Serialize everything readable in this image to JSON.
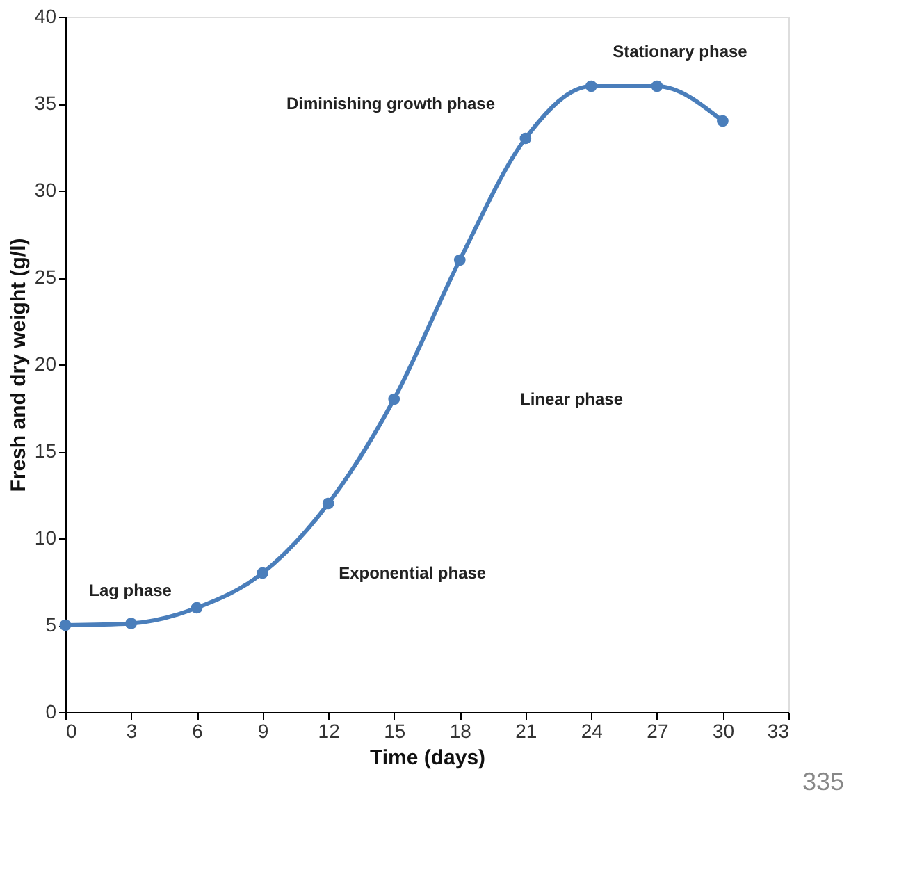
{
  "chart_data": {
    "type": "line",
    "xlabel": "Time (days)",
    "ylabel": "Fresh and dry weight (g/l)",
    "x": [
      0,
      3,
      6,
      9,
      12,
      15,
      18,
      21,
      24,
      27,
      30
    ],
    "series": [
      {
        "color": "#4a7ebb",
        "values": [
          5,
          5.1,
          6,
          8,
          12,
          18,
          26,
          33,
          36,
          36,
          34
        ]
      }
    ],
    "xlim": [
      0,
      33
    ],
    "xticks": [
      0,
      3,
      6,
      9,
      12,
      15,
      18,
      21,
      24,
      27,
      30,
      33
    ],
    "ylim": [
      0,
      40
    ],
    "yticks": [
      0,
      5,
      10,
      15,
      20,
      25,
      30,
      35,
      40
    ],
    "grid": false,
    "marker": "circle",
    "line_style": "solid",
    "annotations": [
      "Lag phase",
      "Exponential phase",
      "Linear phase",
      "Diminishing growth phase",
      "Stationary phase",
      "335"
    ]
  }
}
